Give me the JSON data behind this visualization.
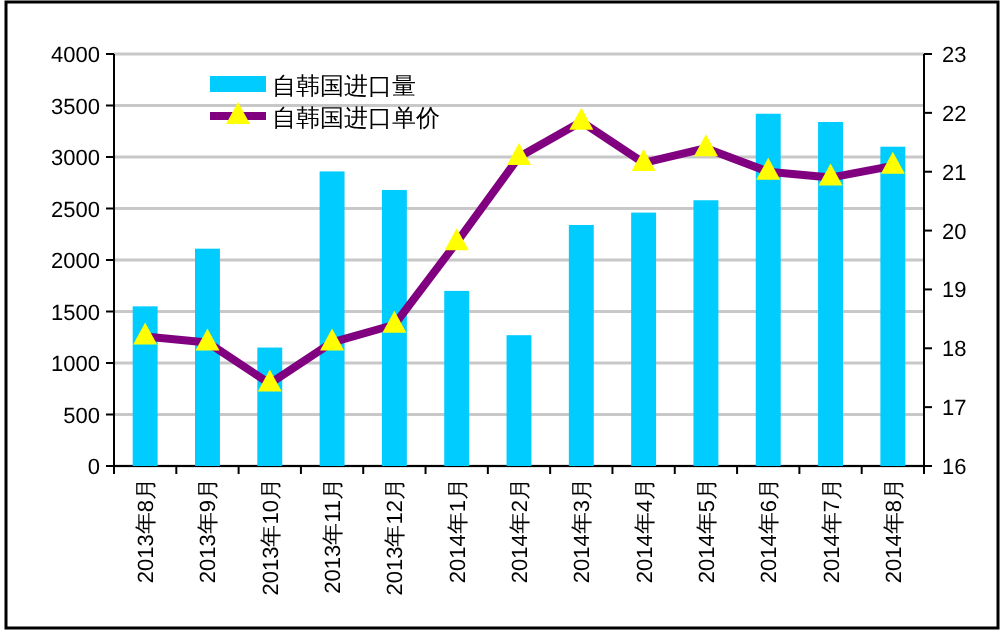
{
  "chart_data": {
    "type": "bar",
    "categories": [
      "2013年8月",
      "2013年9月",
      "2013年10月",
      "2013年11月",
      "2013年12月",
      "2014年1月",
      "2014年2月",
      "2014年3月",
      "2014年4月",
      "2014年5月",
      "2014年6月",
      "2014年7月",
      "2014年8月"
    ],
    "series": [
      {
        "name": "自韩国进口量",
        "color": "#00ccff",
        "values": [
          1550,
          2110,
          1150,
          2860,
          2680,
          1700,
          1270,
          2340,
          2460,
          2580,
          3420,
          3340,
          3100
        ]
      },
      {
        "name": "自韩国进口单价",
        "type": "line",
        "axis": "y2",
        "color": "#800080",
        "marker": "triangle",
        "values": [
          18.2,
          18.1,
          17.4,
          18.1,
          18.4,
          19.8,
          21.25,
          21.85,
          21.15,
          21.4,
          21.0,
          20.9,
          21.1
        ]
      }
    ],
    "ylim": [
      0,
      4000
    ],
    "yticks": [
      0,
      500,
      1000,
      1500,
      2000,
      2500,
      3000,
      3500,
      4000
    ],
    "y2lim": [
      16,
      23
    ],
    "y2ticks": [
      16,
      17,
      18,
      19,
      20,
      21,
      22,
      23
    ],
    "grid": "y",
    "legend": "top left"
  }
}
